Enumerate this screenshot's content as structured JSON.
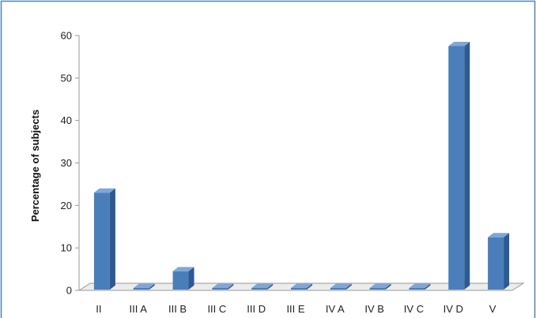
{
  "chart_data": {
    "type": "bar",
    "title": "",
    "xlabel": "",
    "ylabel": "Percentage of subjects",
    "categories": [
      "II",
      "III A",
      "III B",
      "III C",
      "III D",
      "III E",
      "IV A",
      "IV B",
      "IV C",
      "IV D",
      "V"
    ],
    "values": [
      23,
      0.5,
      4.5,
      0,
      0,
      0,
      0,
      0,
      0.5,
      57.5,
      12.5
    ],
    "ylim": [
      0,
      60
    ],
    "yticks": [
      0,
      10,
      20,
      30,
      40,
      50,
      60
    ],
    "grid": false,
    "legend": "none",
    "colors": {
      "bar_front": "#4a7ebb",
      "bar_side": "#2c5a91",
      "bar_top": "#7fa6d9",
      "frame": "#4f81bd",
      "axis": "#999999"
    }
  }
}
